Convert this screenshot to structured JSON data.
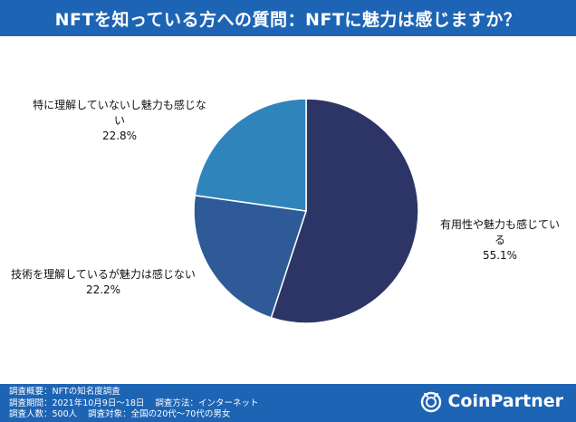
{
  "header": {
    "title": "NFTを知っている方への質問：NFTに魅力は感じますか？"
  },
  "chart_data": {
    "type": "pie",
    "title": "NFTを知っている方への質問：NFTに魅力は感じますか？",
    "slices": [
      {
        "label": "有用性や魅力も感じている",
        "value": 55.1,
        "value_label": "55.1%",
        "color": "#2d3566"
      },
      {
        "label": "技術を理解しているが魅力は感じない",
        "value": 22.2,
        "value_label": "22.2%",
        "color": "#2e5b98"
      },
      {
        "label": "特に理解していないし魅力も感じない",
        "value": 22.8,
        "value_label": "22.8%",
        "color": "#2f84bb"
      }
    ]
  },
  "footer": {
    "line1": {
      "label": "調査概要：",
      "text": "NFTの知名度調査"
    },
    "line2": {
      "period_label": "調査期間：",
      "period": "2021年10月9日〜18日",
      "method_label": "調査方法：",
      "method": "インターネット"
    },
    "line3": {
      "count_label": "調査人数：",
      "count": "500人",
      "target_label": "調査対象：",
      "target": "全国の20代〜70代の男女"
    }
  },
  "logo": {
    "text": "CoinPartner",
    "icon": "coin-partner-logo-icon"
  }
}
